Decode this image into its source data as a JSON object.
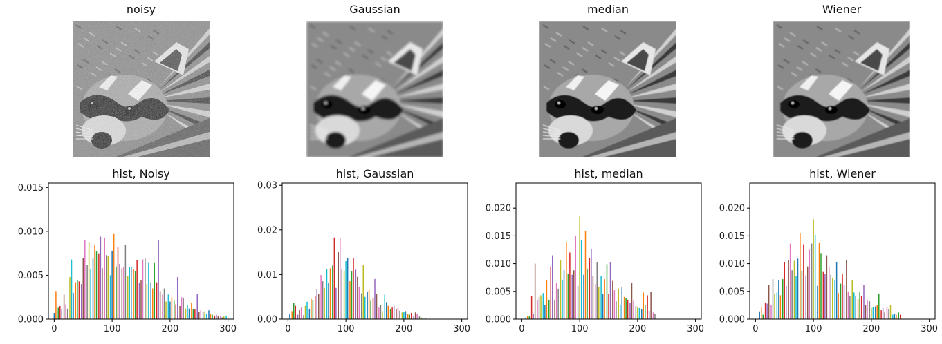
{
  "images": [
    {
      "title": "noisy",
      "style": "noisy"
    },
    {
      "title": "Gaussian",
      "style": "blur"
    },
    {
      "title": "median",
      "style": "median"
    },
    {
      "title": "Wiener",
      "style": "wiener"
    }
  ],
  "colors": [
    "#1f77b4",
    "#ff7f0e",
    "#2ca02c",
    "#d62728",
    "#9467bd",
    "#8c564b",
    "#e377c2",
    "#7f7f7f",
    "#bcbd22",
    "#17becf"
  ],
  "chart_data": [
    {
      "type": "bar",
      "title": "hist, Noisy",
      "xlim": [
        -10,
        310
      ],
      "ylim": [
        0,
        0.0155
      ],
      "xticks": [
        "0",
        "100",
        "200",
        "300"
      ],
      "yticks": [
        "0.000",
        "0.005",
        "0.010",
        "0.015"
      ],
      "x": [
        0,
        3,
        7,
        10,
        13,
        17,
        20,
        23,
        27,
        30,
        33,
        37,
        40,
        43,
        47,
        50,
        53,
        57,
        60,
        63,
        67,
        70,
        73,
        77,
        80,
        83,
        87,
        90,
        93,
        97,
        100,
        103,
        107,
        110,
        113,
        117,
        120,
        123,
        127,
        130,
        133,
        137,
        140,
        143,
        147,
        150,
        153,
        157,
        160,
        163,
        167,
        170,
        173,
        177,
        180,
        183,
        187,
        190,
        193,
        197,
        200,
        203,
        207,
        210,
        213,
        217,
        220,
        223,
        227,
        230,
        233,
        237,
        240,
        243,
        247,
        250,
        253,
        257,
        260,
        263,
        267,
        270,
        273,
        277,
        280,
        283,
        287,
        290,
        293,
        297
      ],
      "values": [
        0.0007,
        0.0032,
        0.0013,
        0.0015,
        0.0012,
        0.0028,
        0.0017,
        0.0012,
        0.0048,
        0.0068,
        0.003,
        0.0042,
        0.0044,
        0.0043,
        0.004,
        0.007,
        0.009,
        0.0062,
        0.0088,
        0.0057,
        0.0069,
        0.0085,
        0.0077,
        0.0075,
        0.0094,
        0.0058,
        0.0093,
        0.0073,
        0.0072,
        0.005,
        0.0078,
        0.0097,
        0.006,
        0.0082,
        0.0063,
        0.0058,
        0.0059,
        0.0085,
        0.0049,
        0.0059,
        0.006,
        0.0057,
        0.0055,
        0.0067,
        0.0041,
        0.0044,
        0.0068,
        0.0069,
        0.004,
        0.0064,
        0.0042,
        0.0035,
        0.0064,
        0.0042,
        0.009,
        0.0032,
        0.0028,
        0.0035,
        0.002,
        0.0028,
        0.002,
        0.0025,
        0.0021,
        0.0017,
        0.0048,
        0.0015,
        0.0025,
        0.0024,
        0.0012,
        0.0016,
        0.0012,
        0.0019,
        0.0011,
        0.0011,
        0.0029,
        0.0008,
        0.001,
        0.0008,
        0.0009,
        0.0006,
        0.001,
        0.0006,
        0.0005,
        0.0004,
        0.0005,
        0.0004,
        0.0003,
        0.0002,
        0.0003,
        0.0004
      ]
    },
    {
      "type": "bar",
      "title": "hist, Gaussian",
      "xlim": [
        -10,
        310
      ],
      "ylim": [
        0,
        0.0305
      ],
      "xticks": [
        "0",
        "100",
        "200",
        "300"
      ],
      "yticks": [
        "0.00",
        "0.01",
        "0.02",
        "0.03"
      ],
      "x": [
        3,
        7,
        10,
        13,
        17,
        20,
        23,
        27,
        30,
        33,
        37,
        40,
        43,
        47,
        50,
        53,
        57,
        60,
        63,
        67,
        70,
        73,
        77,
        80,
        83,
        87,
        90,
        93,
        97,
        100,
        103,
        107,
        110,
        113,
        117,
        120,
        123,
        127,
        130,
        133,
        137,
        140,
        143,
        147,
        150,
        153,
        157,
        160,
        163,
        167,
        170,
        173,
        177,
        180,
        183,
        187,
        190,
        193,
        197,
        200,
        203,
        207,
        210,
        213,
        217,
        220,
        223,
        227,
        230,
        233,
        237
      ],
      "values": [
        0.0012,
        0.0018,
        0.0036,
        0.003,
        0.001,
        0.002,
        0.0026,
        0.0009,
        0.003,
        0.0039,
        0.0022,
        0.0045,
        0.0042,
        0.0052,
        0.0068,
        0.0057,
        0.0099,
        0.0085,
        0.007,
        0.0113,
        0.0081,
        0.0114,
        0.012,
        0.0183,
        0.007,
        0.015,
        0.0181,
        0.0112,
        0.0109,
        0.013,
        0.0138,
        0.0085,
        0.0108,
        0.0137,
        0.0111,
        0.0095,
        0.0073,
        0.0058,
        0.0122,
        0.005,
        0.0062,
        0.0065,
        0.0041,
        0.0048,
        0.009,
        0.0057,
        0.0026,
        0.0032,
        0.0018,
        0.0055,
        0.0038,
        0.003,
        0.0022,
        0.0026,
        0.003,
        0.0022,
        0.0025,
        0.0019,
        0.0015,
        0.0016,
        0.0018,
        0.0012,
        0.001,
        0.0014,
        0.0008,
        0.0015,
        0.0011,
        0.0006,
        0.0004,
        0.0003,
        0.0002
      ]
    },
    {
      "type": "bar",
      "title": "hist, median",
      "xlim": [
        -10,
        310
      ],
      "ylim": [
        0,
        0.0245
      ],
      "xticks": [
        "0",
        "100",
        "200",
        "300"
      ],
      "yticks": [
        "0.000",
        "0.005",
        "0.010",
        "0.015",
        "0.020"
      ],
      "x": [
        7,
        10,
        13,
        17,
        20,
        23,
        27,
        30,
        33,
        37,
        40,
        43,
        47,
        50,
        53,
        57,
        60,
        63,
        67,
        70,
        73,
        77,
        80,
        83,
        87,
        90,
        93,
        97,
        100,
        103,
        107,
        110,
        113,
        117,
        120,
        123,
        127,
        130,
        133,
        137,
        140,
        143,
        147,
        150,
        153,
        157,
        160,
        163,
        167,
        170,
        173,
        177,
        180,
        183,
        187,
        190,
        193,
        197,
        200,
        203,
        207,
        210,
        213,
        217,
        220,
        223,
        227,
        230
      ],
      "values": [
        0.0003,
        0.0006,
        0.0005,
        0.0041,
        0.001,
        0.01,
        0.0034,
        0.004,
        0.0043,
        0.0047,
        0.0026,
        0.007,
        0.0035,
        0.0095,
        0.0115,
        0.0035,
        0.0066,
        0.0055,
        0.0107,
        0.0071,
        0.0088,
        0.0139,
        0.0081,
        0.012,
        0.008,
        0.0088,
        0.015,
        0.006,
        0.0185,
        0.0143,
        0.008,
        0.0158,
        0.0091,
        0.011,
        0.0127,
        0.0078,
        0.0063,
        0.0103,
        0.0058,
        0.0078,
        0.0046,
        0.0072,
        0.0099,
        0.0046,
        0.0103,
        0.0069,
        0.0052,
        0.0032,
        0.0055,
        0.0025,
        0.0058,
        0.004,
        0.0038,
        0.0035,
        0.003,
        0.0065,
        0.0033,
        0.0024,
        0.0022,
        0.002,
        0.0018,
        0.0048,
        0.0025,
        0.0043,
        0.0015,
        0.0049,
        0.0012,
        0.001
      ]
    },
    {
      "type": "bar",
      "title": "hist, Wiener",
      "xlim": [
        -10,
        310
      ],
      "ylim": [
        0,
        0.0245
      ],
      "xticks": [
        "0",
        "100",
        "200",
        "300"
      ],
      "yticks": [
        "0.000",
        "0.005",
        "0.010",
        "0.015",
        "0.020"
      ],
      "x": [
        7,
        10,
        13,
        17,
        20,
        23,
        27,
        30,
        33,
        37,
        40,
        43,
        47,
        50,
        53,
        57,
        60,
        63,
        67,
        70,
        73,
        77,
        80,
        83,
        87,
        90,
        93,
        97,
        100,
        103,
        107,
        110,
        113,
        117,
        120,
        123,
        127,
        130,
        133,
        137,
        140,
        143,
        147,
        150,
        153,
        157,
        160,
        163,
        167,
        170,
        173,
        177,
        180,
        183,
        187,
        190,
        193,
        197,
        200,
        203,
        207,
        210,
        213,
        217,
        220,
        223,
        227,
        230,
        233,
        237,
        240,
        243,
        247,
        250
      ],
      "values": [
        0.0014,
        0.0021,
        0.0008,
        0.003,
        0.0028,
        0.0062,
        0.0025,
        0.0072,
        0.0045,
        0.0048,
        0.007,
        0.0043,
        0.0072,
        0.0102,
        0.006,
        0.0106,
        0.0136,
        0.0088,
        0.0105,
        0.0078,
        0.0109,
        0.0155,
        0.0087,
        0.0135,
        0.0079,
        0.0095,
        0.0125,
        0.0136,
        0.018,
        0.0152,
        0.006,
        0.0137,
        0.0119,
        0.0085,
        0.0081,
        0.0115,
        0.0095,
        0.008,
        0.0074,
        0.007,
        0.0102,
        0.0047,
        0.0064,
        0.0082,
        0.0061,
        0.0107,
        0.005,
        0.0042,
        0.007,
        0.0048,
        0.0042,
        0.0036,
        0.005,
        0.0042,
        0.0062,
        0.0025,
        0.0035,
        0.0032,
        0.002,
        0.0022,
        0.0023,
        0.0026,
        0.0045,
        0.0016,
        0.002,
        0.0012,
        0.0022,
        0.0018,
        0.0026,
        0.0008,
        0.001,
        0.0008,
        0.0012,
        0.0008
      ]
    }
  ]
}
